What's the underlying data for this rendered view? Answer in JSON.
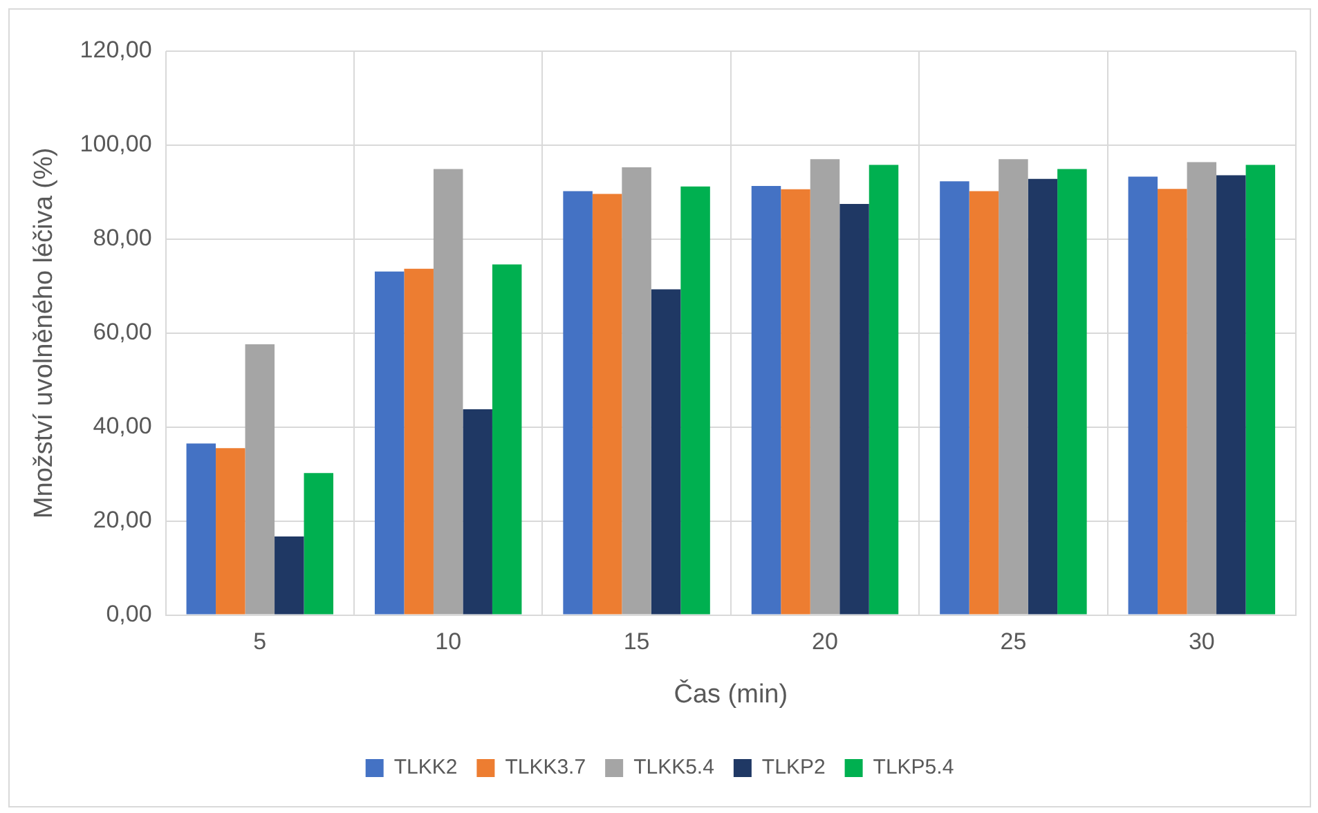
{
  "chart_data": {
    "type": "bar",
    "xlabel": "Čas (min)",
    "ylabel": "Množství uvolněného léčiva (%)",
    "categories": [
      "5",
      "10",
      "15",
      "20",
      "25",
      "30"
    ],
    "series": [
      {
        "name": "TLKK2",
        "color": "#4472c4",
        "values": [
          36.5,
          73.1,
          90.2,
          91.3,
          92.3,
          93.3
        ]
      },
      {
        "name": "TLKK3.7",
        "color": "#ed7d31",
        "values": [
          35.5,
          73.7,
          89.6,
          90.6,
          90.2,
          90.7
        ]
      },
      {
        "name": "TLKK5.4",
        "color": "#a5a5a5",
        "values": [
          57.6,
          94.9,
          95.3,
          97.0,
          97.0,
          96.4
        ]
      },
      {
        "name": "TLKP2",
        "color": "#1f3864",
        "values": [
          16.7,
          43.8,
          69.3,
          87.5,
          92.8,
          93.6
        ]
      },
      {
        "name": "TLKP5.4",
        "color": "#00b050",
        "values": [
          30.2,
          74.6,
          91.2,
          95.8,
          94.9,
          95.8
        ]
      }
    ],
    "ylim": [
      0,
      120
    ],
    "yticks": [
      {
        "value": 0,
        "label": "0,00"
      },
      {
        "value": 20,
        "label": "20,00"
      },
      {
        "value": 40,
        "label": "40,00"
      },
      {
        "value": 60,
        "label": "60,00"
      },
      {
        "value": 80,
        "label": "80,00"
      },
      {
        "value": 100,
        "label": "100,00"
      },
      {
        "value": 120,
        "label": "120,00"
      }
    ],
    "grid": true,
    "legend": "bottom"
  }
}
